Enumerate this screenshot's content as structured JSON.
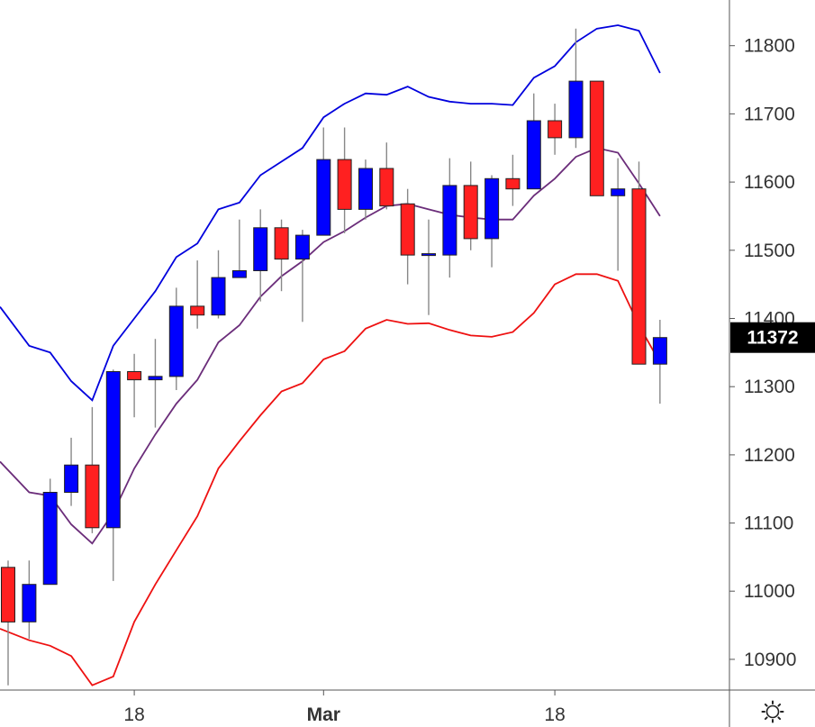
{
  "chart_data": {
    "type": "candlestick",
    "x_tick_labels": [
      "18",
      "Mar",
      "18"
    ],
    "y_ticks": [
      10900,
      11000,
      11100,
      11200,
      11300,
      11400,
      11500,
      11600,
      11700,
      11800
    ],
    "ylim": [
      10855,
      11867
    ],
    "current_price": "11372",
    "colors": {
      "up": "#0000ff",
      "down": "#ff2020",
      "upper_band": "#0000dd",
      "middle_band": "#6b2d7a",
      "lower_band": "#ee1111",
      "price_tag_bg": "#000000",
      "wick": "#888888"
    },
    "candles": [
      {
        "o": 11035,
        "h": 11045,
        "l": 10862,
        "c": 10955
      },
      {
        "o": 10955,
        "h": 11045,
        "l": 10930,
        "c": 11010
      },
      {
        "o": 11010,
        "h": 11165,
        "l": 11010,
        "c": 11145
      },
      {
        "o": 11145,
        "h": 11225,
        "l": 11125,
        "c": 11185
      },
      {
        "o": 11185,
        "h": 11270,
        "l": 11085,
        "c": 11093
      },
      {
        "o": 11093,
        "h": 11325,
        "l": 11015,
        "c": 11322
      },
      {
        "o": 11322,
        "h": 11348,
        "l": 11255,
        "c": 11310
      },
      {
        "o": 11310,
        "h": 11370,
        "l": 11240,
        "c": 11315
      },
      {
        "o": 11315,
        "h": 11445,
        "l": 11295,
        "c": 11418
      },
      {
        "o": 11418,
        "h": 11485,
        "l": 11385,
        "c": 11405
      },
      {
        "o": 11405,
        "h": 11500,
        "l": 11400,
        "c": 11460
      },
      {
        "o": 11460,
        "h": 11545,
        "l": 11460,
        "c": 11470
      },
      {
        "o": 11470,
        "h": 11560,
        "l": 11425,
        "c": 11533
      },
      {
        "o": 11533,
        "h": 11545,
        "l": 11440,
        "c": 11487
      },
      {
        "o": 11487,
        "h": 11530,
        "l": 11395,
        "c": 11522
      },
      {
        "o": 11522,
        "h": 11680,
        "l": 11522,
        "c": 11633
      },
      {
        "o": 11633,
        "h": 11680,
        "l": 11525,
        "c": 11560
      },
      {
        "o": 11560,
        "h": 11633,
        "l": 11545,
        "c": 11620
      },
      {
        "o": 11620,
        "h": 11658,
        "l": 11560,
        "c": 11565
      },
      {
        "o": 11568,
        "h": 11590,
        "l": 11450,
        "c": 11493
      },
      {
        "o": 11493,
        "h": 11545,
        "l": 11405,
        "c": 11495
      },
      {
        "o": 11493,
        "h": 11635,
        "l": 11460,
        "c": 11595
      },
      {
        "o": 11595,
        "h": 11630,
        "l": 11500,
        "c": 11517
      },
      {
        "o": 11517,
        "h": 11610,
        "l": 11475,
        "c": 11605
      },
      {
        "o": 11605,
        "h": 11640,
        "l": 11565,
        "c": 11590
      },
      {
        "o": 11590,
        "h": 11730,
        "l": 11590,
        "c": 11690
      },
      {
        "o": 11690,
        "h": 11715,
        "l": 11640,
        "c": 11665
      },
      {
        "o": 11665,
        "h": 11825,
        "l": 11650,
        "c": 11748
      },
      {
        "o": 11748,
        "h": 11748,
        "l": 11580,
        "c": 11580
      },
      {
        "o": 11580,
        "h": 11635,
        "l": 11470,
        "c": 11590
      },
      {
        "o": 11590,
        "h": 11630,
        "l": 11333,
        "c": 11333
      },
      {
        "o": 11333,
        "h": 11398,
        "l": 11275,
        "c": 11372
      }
    ],
    "bands": {
      "upper": [
        11417,
        11360,
        11350,
        11308,
        11280,
        11360,
        11400,
        11440,
        11490,
        11510,
        11560,
        11570,
        11610,
        11630,
        11650,
        11695,
        11715,
        11730,
        11728,
        11740,
        11725,
        11718,
        11715,
        11715,
        11713,
        11753,
        11770,
        11805,
        11825,
        11830,
        11822,
        11760
      ],
      "middle": [
        11190,
        11145,
        11140,
        11098,
        11070,
        11115,
        11180,
        11230,
        11275,
        11310,
        11365,
        11390,
        11432,
        11462,
        11484,
        11512,
        11528,
        11548,
        11565,
        11568,
        11560,
        11552,
        11548,
        11545,
        11545,
        11580,
        11605,
        11637,
        11650,
        11643,
        11598,
        11550
      ],
      "lower": [
        10945,
        10928,
        10920,
        10905,
        10862,
        10875,
        10955,
        11010,
        11060,
        11110,
        11180,
        11220,
        11258,
        11293,
        11305,
        11340,
        11352,
        11385,
        11398,
        11392,
        11393,
        11383,
        11375,
        11373,
        11380,
        11408,
        11450,
        11465,
        11465,
        11455,
        11390,
        11335
      ]
    }
  },
  "settings_icon": "gear-icon"
}
